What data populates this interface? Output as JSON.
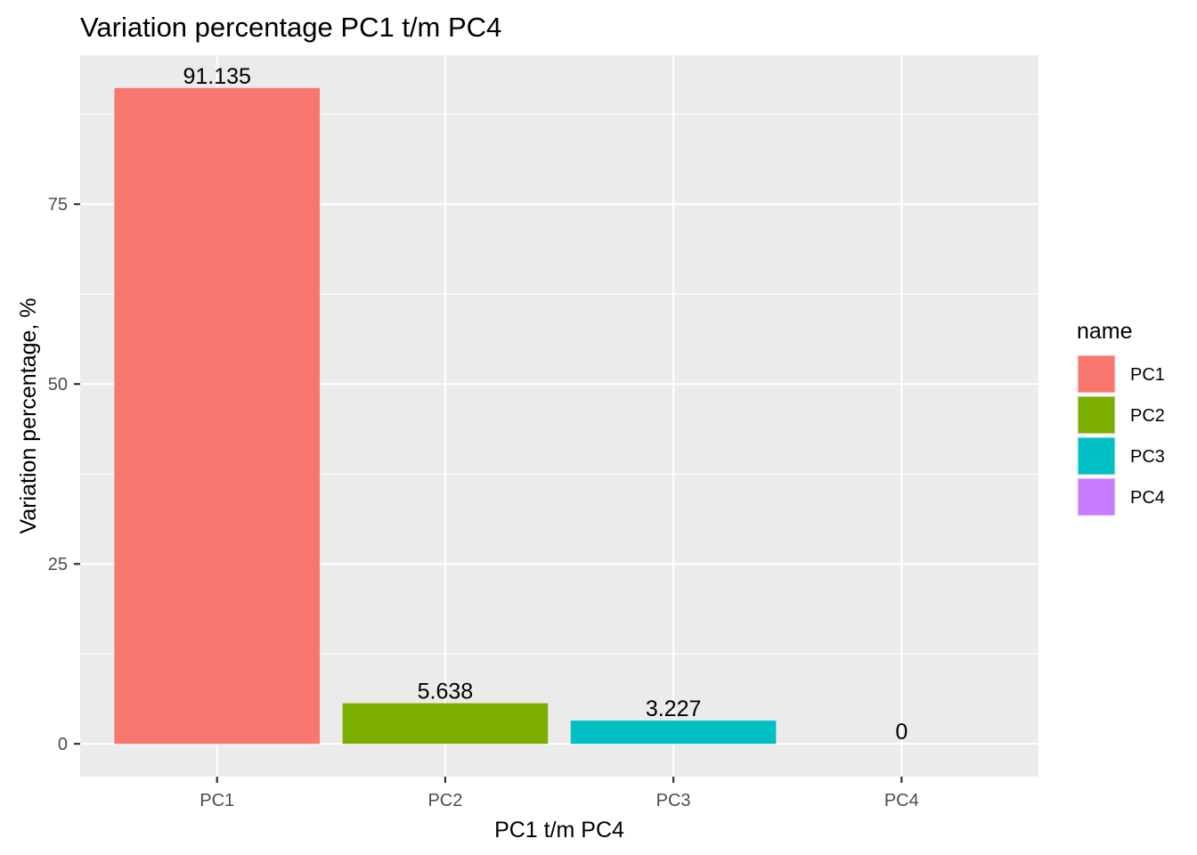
{
  "chart_data": {
    "type": "bar",
    "title": "Variation percentage PC1 t/m PC4",
    "xlabel": "PC1 t/m PC4",
    "ylabel": "Variation percentage, %",
    "categories": [
      "PC1",
      "PC2",
      "PC3",
      "PC4"
    ],
    "values": [
      91.135,
      5.638,
      3.227,
      0
    ],
    "data_labels": [
      "91.135",
      "5.638",
      "3.227",
      "0"
    ],
    "colors": [
      "#F8766D",
      "#7CAE00",
      "#00BFC4",
      "#C77CFF"
    ],
    "ylim": [
      -4.56,
      95.7
    ],
    "yticks": [
      0,
      25,
      50,
      75
    ],
    "ytick_labels": [
      "0",
      "25",
      "50",
      "75"
    ],
    "grid": true,
    "panel_background": "#EBEBEB",
    "legend": {
      "title": "name",
      "position": "right",
      "entries": [
        "PC1",
        "PC2",
        "PC3",
        "PC4"
      ]
    }
  }
}
